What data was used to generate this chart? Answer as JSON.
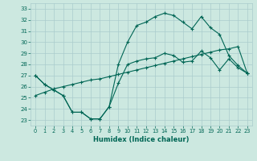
{
  "xlabel": "Humidex (Indice chaleur)",
  "bg_color": "#cce8e0",
  "grid_color": "#aacccc",
  "line_color": "#006655",
  "xlim": [
    -0.5,
    23.5
  ],
  "ylim": [
    22.5,
    33.5
  ],
  "xticks": [
    0,
    1,
    2,
    3,
    4,
    5,
    6,
    7,
    8,
    9,
    10,
    11,
    12,
    13,
    14,
    15,
    16,
    17,
    18,
    19,
    20,
    21,
    22,
    23
  ],
  "yticks": [
    23,
    24,
    25,
    26,
    27,
    28,
    29,
    30,
    31,
    32,
    33
  ],
  "line1_x": [
    0,
    1,
    2,
    3,
    4,
    5,
    6,
    7,
    8,
    9,
    10,
    11,
    12,
    13,
    14,
    15,
    16,
    17,
    18,
    19,
    20,
    21,
    22,
    23
  ],
  "line1_y": [
    27.0,
    26.2,
    25.7,
    25.2,
    23.7,
    23.7,
    23.1,
    23.1,
    24.2,
    26.3,
    28.0,
    28.3,
    28.5,
    28.6,
    29.0,
    28.8,
    28.2,
    28.3,
    29.2,
    28.6,
    27.5,
    28.5,
    27.7,
    27.2
  ],
  "line2_x": [
    0,
    1,
    2,
    3,
    4,
    5,
    6,
    7,
    8,
    9,
    10,
    11,
    12,
    13,
    14,
    15,
    16,
    17,
    18,
    19,
    20,
    21,
    22,
    23
  ],
  "line2_y": [
    27.0,
    26.2,
    25.7,
    25.2,
    23.7,
    23.7,
    23.1,
    23.1,
    24.2,
    28.0,
    30.0,
    31.5,
    31.8,
    32.3,
    32.6,
    32.4,
    31.8,
    31.2,
    32.3,
    31.3,
    30.7,
    28.8,
    27.9,
    27.2
  ],
  "line3_x": [
    0,
    1,
    2,
    3,
    4,
    5,
    6,
    7,
    8,
    9,
    10,
    11,
    12,
    13,
    14,
    15,
    16,
    17,
    18,
    19,
    20,
    21,
    22,
    23
  ],
  "line3_y": [
    25.2,
    25.5,
    25.8,
    26.0,
    26.2,
    26.4,
    26.6,
    26.7,
    26.9,
    27.1,
    27.3,
    27.5,
    27.7,
    27.9,
    28.1,
    28.3,
    28.5,
    28.7,
    28.9,
    29.1,
    29.3,
    29.4,
    29.6,
    27.2
  ],
  "marker": "+"
}
